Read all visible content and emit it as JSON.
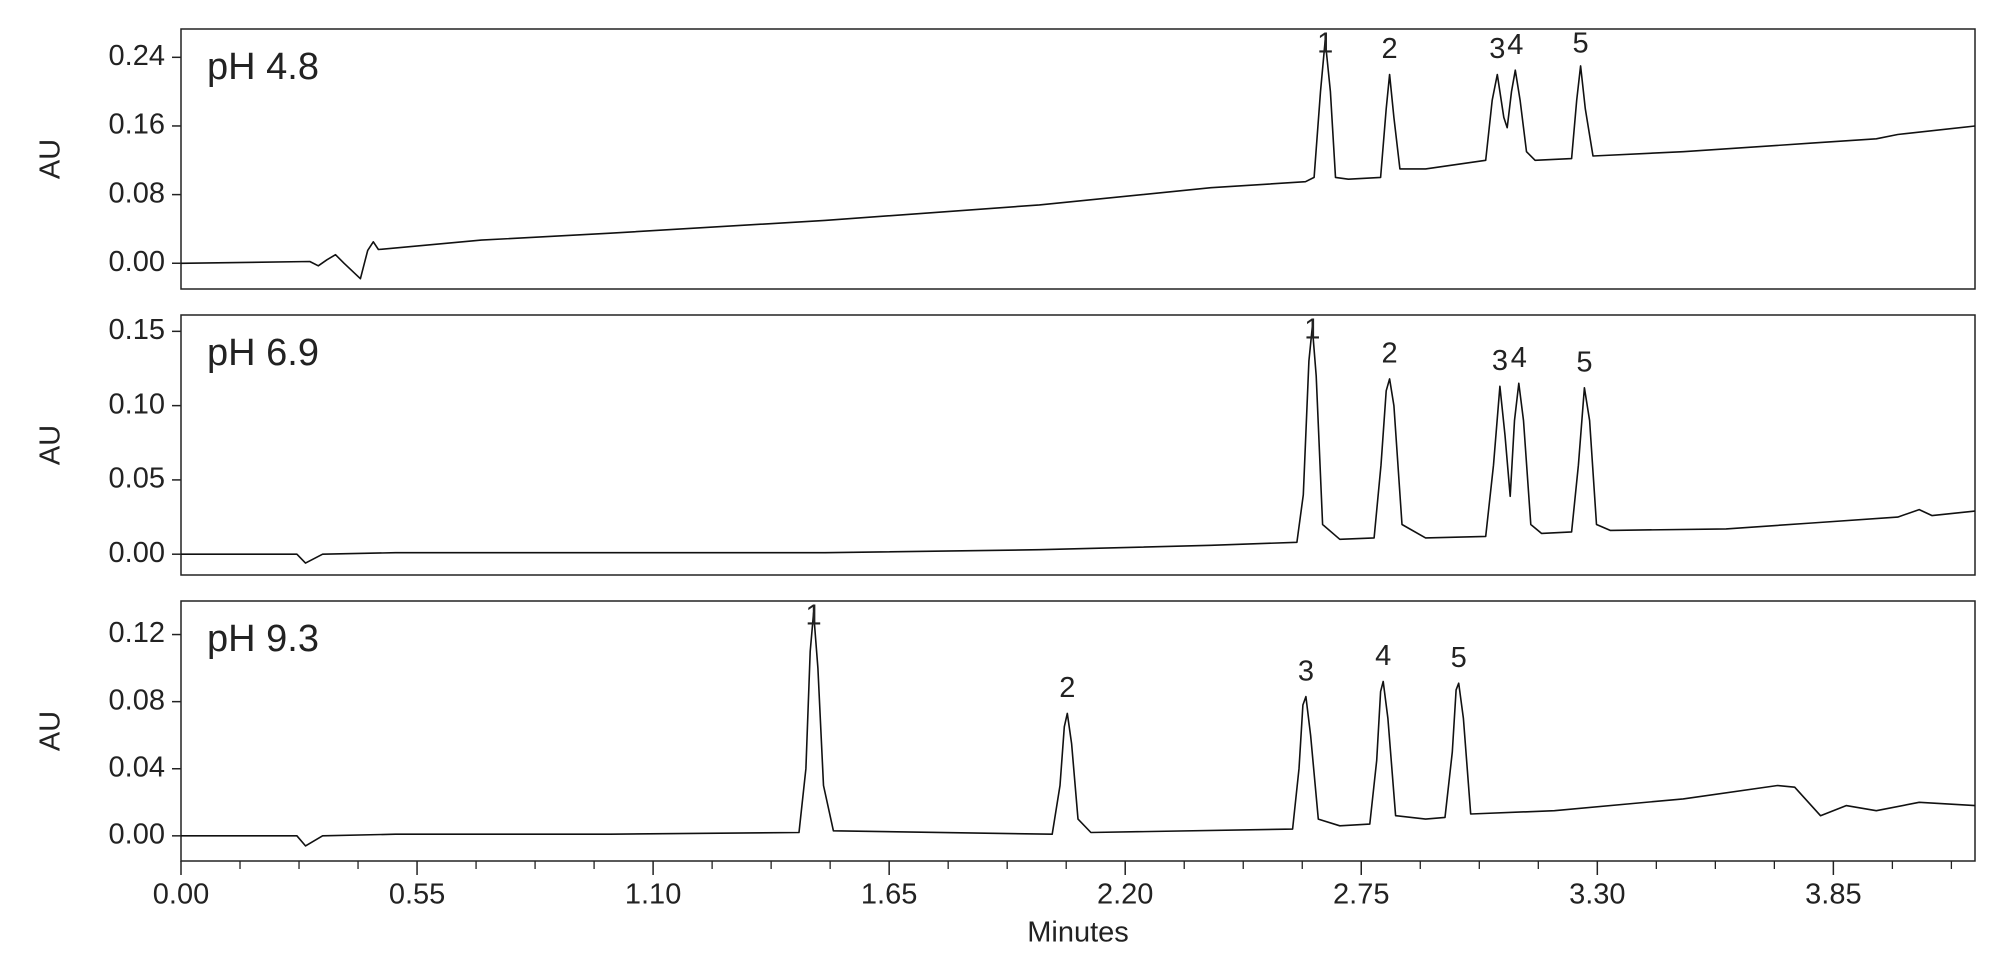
{
  "chart_data": [
    {
      "type": "line",
      "label": "pH 4.8",
      "ylabel": "AU",
      "color": "#111111",
      "xlim": [
        0,
        4.18
      ],
      "ylim": [
        -0.03,
        0.273
      ],
      "yticks": [
        0.24,
        0.16,
        0.08,
        {
          "value": 0,
          "label": "0.00"
        }
      ],
      "x": [
        0,
        0.15,
        0.3,
        0.32,
        0.34,
        0.36,
        0.38,
        0.418,
        0.435,
        0.448,
        0.46,
        0.7,
        1.0,
        1.5,
        2.0,
        2.4,
        2.62,
        2.64,
        2.655,
        2.666,
        2.678,
        2.69,
        2.72,
        2.795,
        2.808,
        2.816,
        2.826,
        2.84,
        2.9,
        3.04,
        3.055,
        3.067,
        3.082,
        3.09,
        3.1,
        3.109,
        3.12,
        3.135,
        3.155,
        3.24,
        3.252,
        3.261,
        3.272,
        3.29,
        3.5,
        3.8,
        3.95,
        4.0,
        4.18
      ],
      "values": [
        0,
        0.001,
        0.002,
        -0.003,
        0.004,
        0.01,
        0.0,
        -0.018,
        0.015,
        0.025,
        0.016,
        0.027,
        0.035,
        0.05,
        0.068,
        0.088,
        0.095,
        0.1,
        0.2,
        0.26,
        0.2,
        0.1,
        0.098,
        0.1,
        0.18,
        0.22,
        0.17,
        0.11,
        0.11,
        0.12,
        0.19,
        0.22,
        0.17,
        0.158,
        0.2,
        0.225,
        0.19,
        0.13,
        0.12,
        0.122,
        0.19,
        0.23,
        0.18,
        0.125,
        0.13,
        0.14,
        0.145,
        0.15,
        0.16
      ],
      "peaks": [
        {
          "label": "1",
          "x": 2.666,
          "y": 0.26
        },
        {
          "label": "2",
          "x": 2.816,
          "y": 0.22
        },
        {
          "label": "3",
          "x": 3.067,
          "y": 0.22
        },
        {
          "label": "4",
          "x": 3.109,
          "y": 0.225
        },
        {
          "label": "5",
          "x": 3.261,
          "y": 0.23
        }
      ]
    },
    {
      "type": "line",
      "label": "pH 6.9",
      "ylabel": "AU",
      "color": "#111111",
      "xlim": [
        0,
        4.18
      ],
      "ylim": [
        -0.014,
        0.161
      ],
      "yticks": [
        0.15,
        {
          "value": 0.1,
          "label": "0.10"
        },
        0.05,
        {
          "value": 0,
          "label": "0.00"
        }
      ],
      "x": [
        0,
        0.27,
        0.29,
        0.33,
        0.5,
        1.5,
        2.0,
        2.4,
        2.6,
        2.615,
        2.628,
        2.636,
        2.645,
        2.66,
        2.7,
        2.78,
        2.796,
        2.808,
        2.816,
        2.826,
        2.845,
        2.9,
        3.04,
        3.058,
        3.073,
        3.085,
        3.097,
        3.107,
        3.117,
        3.128,
        3.145,
        3.17,
        3.24,
        3.256,
        3.27,
        3.282,
        3.298,
        3.33,
        3.6,
        3.8,
        4.0,
        4.05,
        4.08,
        4.18
      ],
      "values": [
        0,
        0,
        -0.006,
        0.0,
        0.001,
        0.001,
        0.003,
        0.006,
        0.008,
        0.04,
        0.13,
        0.153,
        0.12,
        0.02,
        0.01,
        0.011,
        0.06,
        0.11,
        0.118,
        0.1,
        0.02,
        0.011,
        0.012,
        0.06,
        0.113,
        0.08,
        0.039,
        0.09,
        0.115,
        0.09,
        0.02,
        0.014,
        0.015,
        0.06,
        0.112,
        0.09,
        0.02,
        0.016,
        0.017,
        0.021,
        0.025,
        0.03,
        0.026,
        0.029
      ],
      "peaks": [
        {
          "label": "1",
          "x": 2.636,
          "y": 0.153
        },
        {
          "label": "2",
          "x": 2.816,
          "y": 0.118
        },
        {
          "label": "3",
          "x": 3.073,
          "y": 0.113
        },
        {
          "label": "4",
          "x": 3.117,
          "y": 0.115
        },
        {
          "label": "5",
          "x": 3.27,
          "y": 0.112
        }
      ]
    },
    {
      "type": "line",
      "label": "pH 9.3",
      "ylabel": "AU",
      "color": "#111111",
      "xlabel": "Minutes",
      "xlim": [
        0,
        4.18
      ],
      "ylim": [
        -0.015,
        0.14
      ],
      "yticks": [
        0.12,
        0.08,
        0.04,
        {
          "value": 0,
          "label": "0.00"
        }
      ],
      "xticks": [
        {
          "value": 0,
          "label": "0.00"
        },
        0.55,
        {
          "value": 1.1,
          "label": "1.10"
        },
        1.65,
        {
          "value": 2.2,
          "label": "2.20"
        },
        2.75,
        {
          "value": 3.3,
          "label": "3.30"
        },
        3.85
      ],
      "xminorticks": [
        0.1375,
        0.275,
        0.4125,
        0.6875,
        0.825,
        0.9625,
        1.2375,
        1.375,
        1.5125,
        1.7875,
        1.925,
        2.0625,
        2.3375,
        2.475,
        2.6125,
        2.8875,
        3.025,
        3.1625,
        3.4375,
        3.575,
        3.7125,
        3.9875,
        4.125
      ],
      "x": [
        0,
        0.27,
        0.29,
        0.33,
        0.5,
        1.0,
        1.44,
        1.456,
        1.466,
        1.474,
        1.484,
        1.497,
        1.52,
        2.03,
        2.048,
        2.058,
        2.065,
        2.075,
        2.09,
        2.12,
        2.59,
        2.605,
        2.614,
        2.621,
        2.632,
        2.65,
        2.7,
        2.77,
        2.786,
        2.795,
        2.801,
        2.812,
        2.83,
        2.9,
        2.945,
        2.962,
        2.971,
        2.977,
        2.988,
        3.005,
        3.2,
        3.5,
        3.72,
        3.76,
        3.82,
        3.88,
        3.95,
        4.05,
        4.18
      ],
      "values": [
        0,
        0,
        -0.006,
        0.0,
        0.001,
        0.001,
        0.002,
        0.04,
        0.11,
        0.133,
        0.1,
        0.03,
        0.003,
        0.001,
        0.03,
        0.065,
        0.073,
        0.055,
        0.01,
        0.002,
        0.004,
        0.04,
        0.078,
        0.083,
        0.06,
        0.01,
        0.006,
        0.007,
        0.045,
        0.086,
        0.092,
        0.07,
        0.012,
        0.01,
        0.011,
        0.05,
        0.087,
        0.091,
        0.07,
        0.013,
        0.015,
        0.022,
        0.03,
        0.029,
        0.012,
        0.018,
        0.015,
        0.02,
        0.018
      ],
      "peaks": [
        {
          "label": "1",
          "x": 1.474,
          "y": 0.133
        },
        {
          "label": "2",
          "x": 2.065,
          "y": 0.073
        },
        {
          "label": "3",
          "x": 2.621,
          "y": 0.083
        },
        {
          "label": "4",
          "x": 2.801,
          "y": 0.092
        },
        {
          "label": "5",
          "x": 2.977,
          "y": 0.091
        }
      ]
    }
  ]
}
